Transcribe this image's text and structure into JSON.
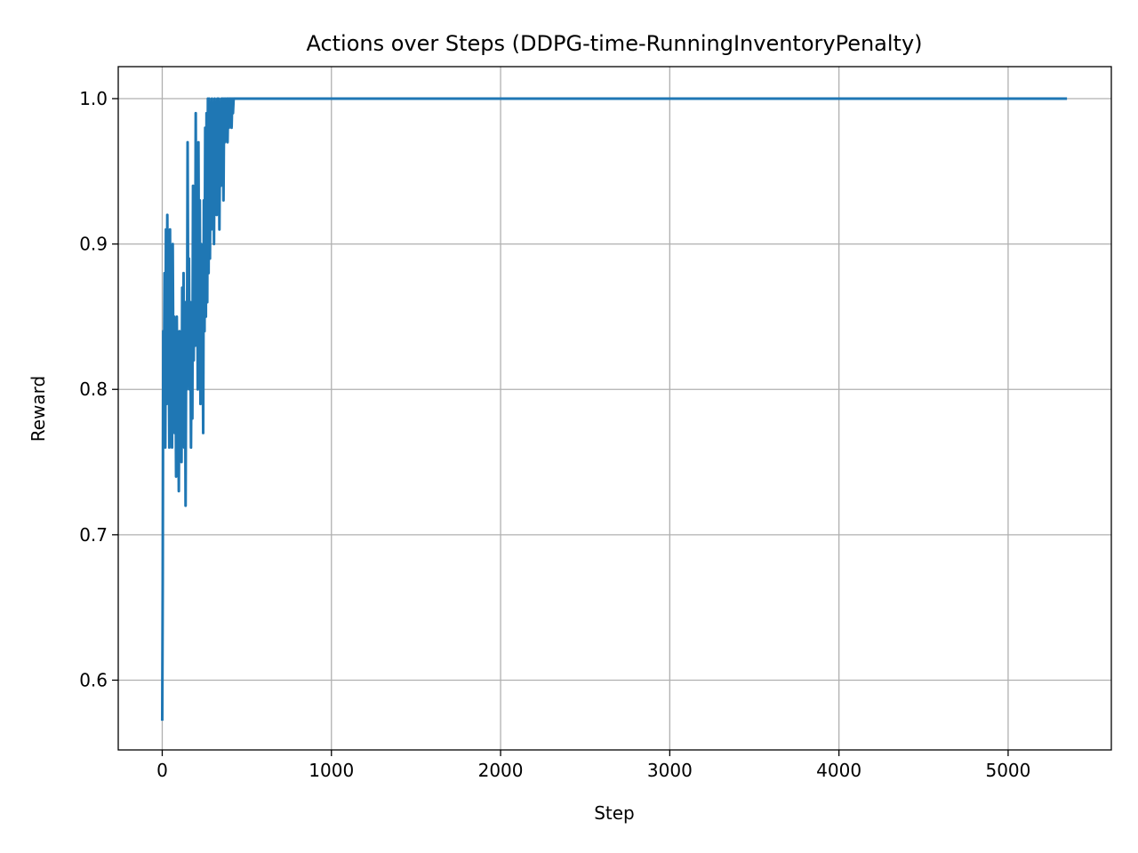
{
  "chart_data": {
    "type": "line",
    "title": "Actions over Steps (DDPG-time-RunningInventoryPenalty)",
    "xlabel": "Step",
    "ylabel": "Reward",
    "xlim": [
      -260,
      5610
    ],
    "ylim": [
      0.552,
      1.022
    ],
    "xticks": [
      0,
      1000,
      2000,
      3000,
      4000,
      5000
    ],
    "yticks": [
      0.6,
      0.7,
      0.8,
      0.9,
      1.0
    ],
    "xtick_labels": [
      "0",
      "1000",
      "2000",
      "3000",
      "4000",
      "5000"
    ],
    "ytick_labels": [
      "0.6",
      "0.7",
      "0.8",
      "0.9",
      "1.0"
    ],
    "grid": true,
    "legend": "none",
    "series_color": "#1f77b4",
    "series": [
      {
        "x": [
          0,
          3,
          6,
          10,
          14,
          18,
          22,
          26,
          30,
          34,
          38,
          42,
          46,
          50,
          54,
          58,
          62,
          66,
          70,
          74,
          78,
          82,
          86,
          90,
          94,
          98,
          102,
          106,
          110,
          114,
          118,
          122,
          126,
          130,
          134,
          138,
          142,
          146,
          150,
          154,
          158,
          162,
          166,
          170,
          174,
          178,
          182,
          186,
          190,
          194,
          198,
          202,
          206,
          210,
          214,
          218,
          222,
          226,
          230,
          234,
          238,
          242,
          246,
          250,
          254,
          258,
          262,
          266,
          270,
          274,
          278,
          282,
          286,
          290,
          294,
          298,
          302,
          306,
          310,
          314,
          318,
          322,
          326,
          330,
          334,
          338,
          342,
          346,
          350,
          354,
          358,
          362,
          366,
          370,
          374,
          378,
          382,
          386,
          390,
          394,
          398,
          402,
          406,
          410,
          414,
          418,
          422,
          426,
          430,
          440,
          500,
          1000,
          2000,
          3000,
          4000,
          5000,
          5340
        ],
        "values": [
          0.573,
          0.67,
          0.84,
          0.8,
          0.88,
          0.76,
          0.91,
          0.79,
          0.92,
          0.81,
          0.85,
          0.76,
          0.91,
          0.77,
          0.86,
          0.76,
          0.9,
          0.81,
          0.85,
          0.77,
          0.83,
          0.74,
          0.85,
          0.78,
          0.82,
          0.73,
          0.84,
          0.77,
          0.83,
          0.75,
          0.87,
          0.78,
          0.88,
          0.76,
          0.86,
          0.72,
          0.85,
          0.8,
          0.97,
          0.83,
          0.89,
          0.8,
          0.86,
          0.76,
          0.85,
          0.78,
          0.94,
          0.82,
          0.92,
          0.83,
          0.99,
          0.86,
          0.94,
          0.8,
          0.97,
          0.84,
          0.93,
          0.79,
          0.9,
          0.8,
          0.87,
          0.77,
          0.93,
          0.84,
          0.98,
          0.85,
          0.99,
          0.86,
          1.0,
          0.88,
          1.0,
          0.89,
          0.96,
          0.91,
          1.0,
          0.92,
          0.98,
          0.9,
          1.0,
          0.93,
          0.99,
          0.92,
          1.0,
          0.95,
          1.0,
          0.91,
          0.99,
          0.94,
          1.0,
          0.96,
          1.0,
          0.93,
          1.0,
          0.97,
          1.0,
          0.98,
          1.0,
          0.97,
          1.0,
          0.98,
          1.0,
          0.99,
          1.0,
          0.98,
          1.0,
          0.99,
          1.0,
          1.0,
          1.0,
          1.0,
          1.0,
          1.0,
          1.0,
          1.0,
          1.0,
          1.0,
          1.0
        ]
      }
    ]
  }
}
